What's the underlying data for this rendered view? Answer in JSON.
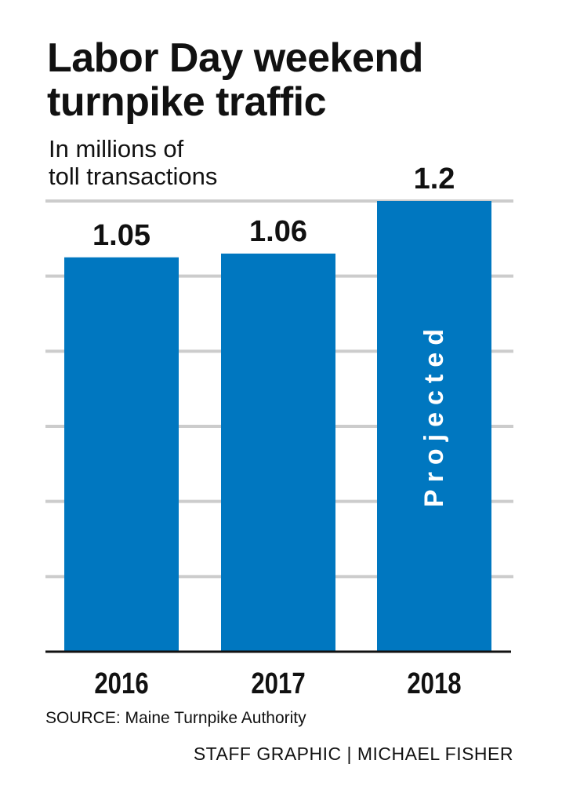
{
  "title_lines": [
    "Labor Day weekend",
    "turnpike traffic"
  ],
  "subtitle_lines": [
    "In millions of",
    "toll transactions"
  ],
  "chart_data": {
    "type": "bar",
    "title": "Labor Day weekend turnpike traffic",
    "ylabel": "In millions of toll transactions",
    "xlabel": "",
    "categories": [
      "2016",
      "2017",
      "2018"
    ],
    "values": [
      1.05,
      1.06,
      1.2
    ],
    "value_labels": [
      "1.05",
      "1.06",
      "1.2"
    ],
    "annotations": [
      {
        "category": "2018",
        "text": "Projected"
      }
    ],
    "ylim": [
      0,
      1.2
    ],
    "grid": true,
    "grid_step": 0.2,
    "legend": "none",
    "bar_color": "#0077C0",
    "grid_color": "#CCCCCC"
  },
  "footer": {
    "source": "SOURCE: Maine Turnpike Authority",
    "credit": "STAFF GRAPHIC | MICHAEL FISHER"
  }
}
